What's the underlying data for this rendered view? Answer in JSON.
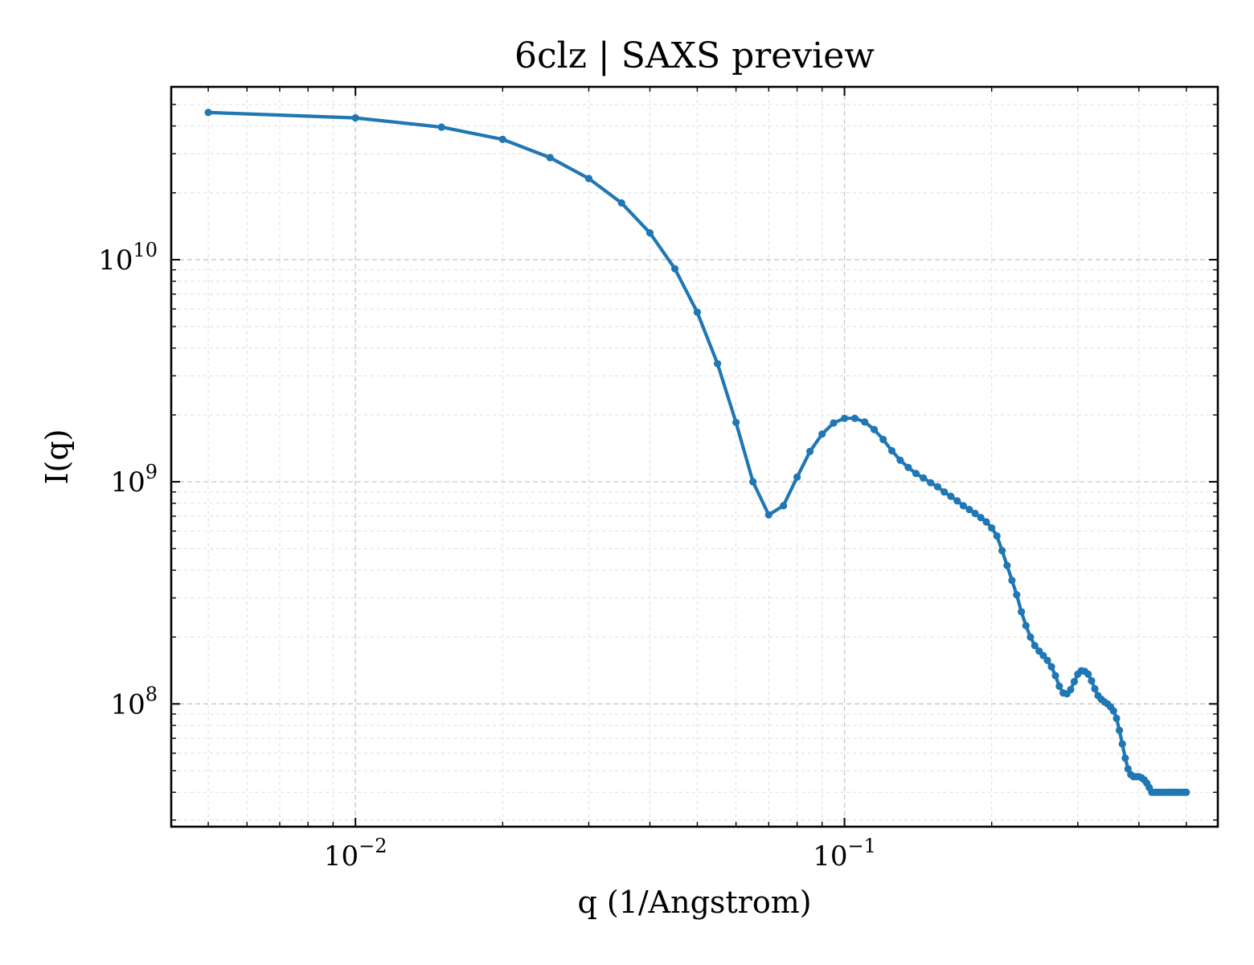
{
  "chart_data": {
    "type": "line",
    "title": "6clz | SAXS preview",
    "xlabel": "q (1/Angstrom)",
    "ylabel": "I(q)",
    "xscale": "log",
    "yscale": "log",
    "xlim": [
      0.0042,
      0.58
    ],
    "ylim": [
      28000000,
      60000000000
    ],
    "xticks": [
      {
        "value": 0.01,
        "base": "10",
        "exp": "−2"
      },
      {
        "value": 0.1,
        "base": "10",
        "exp": "−1"
      }
    ],
    "yticks": [
      {
        "value": 100000000,
        "base": "10",
        "exp": "8"
      },
      {
        "value": 1000000000,
        "base": "10",
        "exp": "9"
      },
      {
        "value": 10000000000,
        "base": "10",
        "exp": "10"
      }
    ],
    "grid": true,
    "series": [
      {
        "color": "#1f77b4",
        "marker": "circle",
        "x": [
          0.005,
          0.01,
          0.015,
          0.02,
          0.025,
          0.03,
          0.035,
          0.04,
          0.045,
          0.05,
          0.055,
          0.06,
          0.065,
          0.07,
          0.075,
          0.08,
          0.085,
          0.09,
          0.095,
          0.1,
          0.105,
          0.11,
          0.115,
          0.12,
          0.125,
          0.13,
          0.135,
          0.14,
          0.145,
          0.15,
          0.155,
          0.16,
          0.165,
          0.17,
          0.175,
          0.18,
          0.185,
          0.19,
          0.195,
          0.2,
          0.205,
          0.21,
          0.215,
          0.22,
          0.225,
          0.23,
          0.235,
          0.24,
          0.245,
          0.25,
          0.255,
          0.26,
          0.265,
          0.27,
          0.275,
          0.28,
          0.285,
          0.29,
          0.295,
          0.3,
          0.305,
          0.31,
          0.315,
          0.32,
          0.325,
          0.33,
          0.335,
          0.34,
          0.345,
          0.35,
          0.355,
          0.36,
          0.365,
          0.37,
          0.375,
          0.38,
          0.385,
          0.39,
          0.395,
          0.4,
          0.405,
          0.41,
          0.415,
          0.42,
          0.425,
          0.43,
          0.435,
          0.44,
          0.445,
          0.45,
          0.455,
          0.46,
          0.465,
          0.47,
          0.475,
          0.48,
          0.485,
          0.49,
          0.495,
          0.5
        ],
        "y": [
          46000000000,
          43500000000,
          39500000000,
          34800000000,
          28800000000,
          23200000000,
          18000000000,
          13200000000,
          9100000000,
          5800000000,
          3400000000,
          1850000000,
          1000000000,
          710000000,
          780000000,
          1050000000,
          1370000000,
          1640000000,
          1840000000,
          1930000000,
          1930000000,
          1860000000,
          1720000000,
          1550000000,
          1380000000,
          1250000000,
          1160000000,
          1090000000,
          1040000000,
          990000000,
          950000000,
          900000000,
          860000000,
          820000000,
          780000000,
          750000000,
          720000000,
          690000000,
          660000000,
          620000000,
          570000000,
          490000000,
          420000000,
          360000000,
          310000000,
          260000000,
          225000000,
          200000000,
          183000000,
          173000000,
          165000000,
          157000000,
          147000000,
          134000000,
          120000000,
          112000000,
          111000000,
          116000000,
          126000000,
          136000000,
          141000000,
          140000000,
          136000000,
          127000000,
          117000000,
          109000000,
          105000000,
          102000000,
          100000000,
          97000000,
          93000000,
          86000000,
          76000000,
          66000000,
          57000000,
          51000000,
          48000000,
          47000000,
          47000000,
          47000000,
          46500000,
          45500000,
          44000000,
          42000000,
          40000000,
          40000000,
          40000000,
          40000000,
          40000000,
          40000000,
          40000000,
          40000000,
          40000000,
          40000000,
          40000000,
          40000000,
          40000000,
          40000000,
          40000000,
          40000000
        ]
      }
    ]
  }
}
